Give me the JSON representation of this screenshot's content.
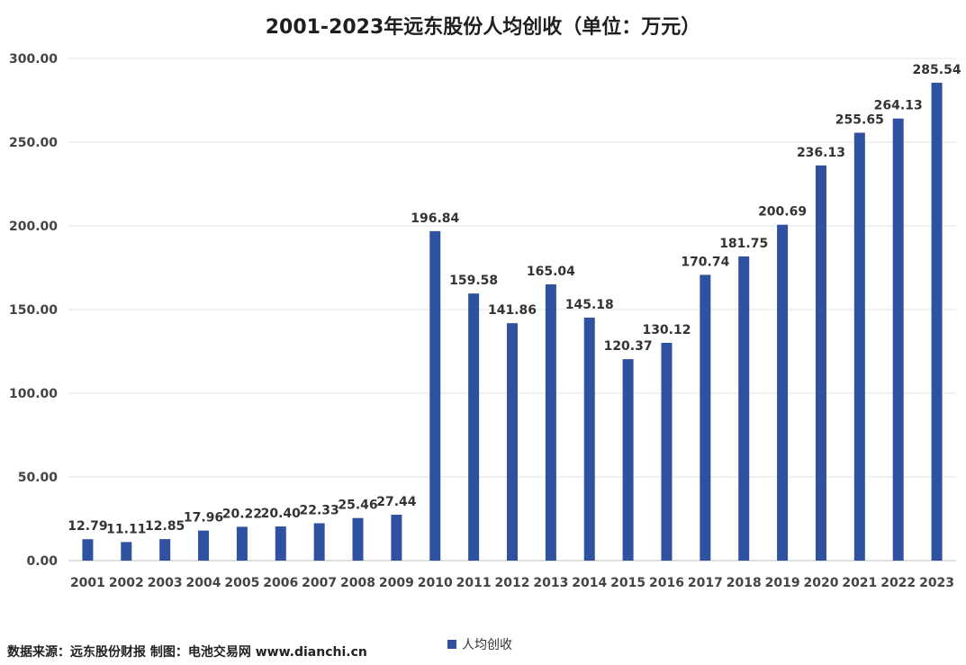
{
  "chart_data": {
    "type": "bar",
    "title": "2001-2023年远东股份人均创收（单位：万元）",
    "categories": [
      "2001",
      "2002",
      "2003",
      "2004",
      "2005",
      "2006",
      "2007",
      "2008",
      "2009",
      "2010",
      "2011",
      "2012",
      "2013",
      "2014",
      "2015",
      "2016",
      "2017",
      "2018",
      "2019",
      "2020",
      "2021",
      "2022",
      "2023"
    ],
    "series": [
      {
        "name": "人均创收",
        "values": [
          12.79,
          11.11,
          12.85,
          17.96,
          20.22,
          20.4,
          22.33,
          25.46,
          27.44,
          196.84,
          159.58,
          141.86,
          165.04,
          145.18,
          120.37,
          130.12,
          170.74,
          181.75,
          200.69,
          236.13,
          255.65,
          264.13,
          285.54
        ]
      }
    ],
    "data_labels": [
      "12.79",
      "11.11",
      "12.85",
      "17.96",
      "20.22",
      "20.40",
      "22.33",
      "25.46",
      "27.44",
      "196.84",
      "159.58",
      "141.86",
      "165.04",
      "145.18",
      "120.37",
      "130.12",
      "170.74",
      "181.75",
      "200.69",
      "236.13",
      "255.65",
      "264.13",
      "285.54"
    ],
    "y_ticks": [
      "0.00",
      "50.00",
      "100.00",
      "150.00",
      "200.00",
      "250.00",
      "300.00"
    ],
    "ylim": [
      0,
      300
    ],
    "grid": true,
    "legend_position": "bottom",
    "bar_color": "#2f52a0",
    "xlabel": "",
    "ylabel": ""
  },
  "source": "数据来源：远东股份财报  制图：电池交易网 www.dianchi.cn"
}
